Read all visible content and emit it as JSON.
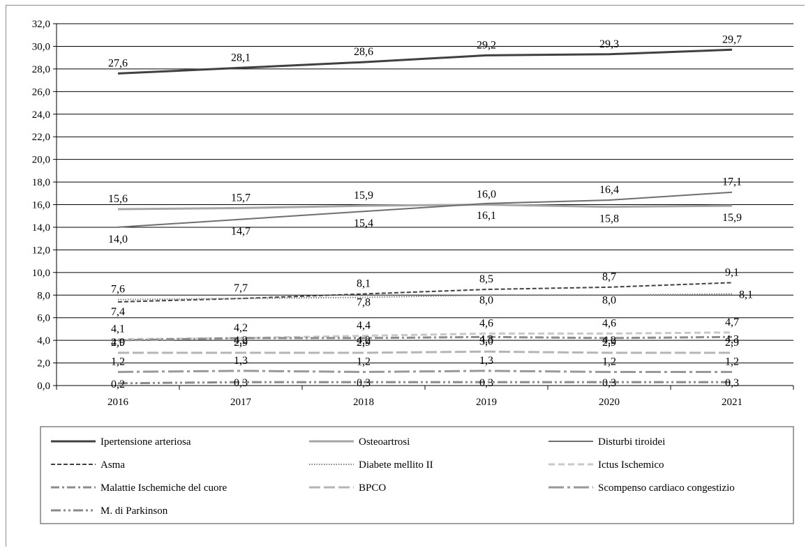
{
  "chart_data": {
    "type": "line",
    "title": "",
    "xlabel": "",
    "ylabel": "",
    "categories": [
      "2016",
      "2017",
      "2018",
      "2019",
      "2020",
      "2021"
    ],
    "ylim": [
      0,
      32
    ],
    "yticks": [
      "0,0",
      "2,0",
      "4,0",
      "6,0",
      "8,0",
      "10,0",
      "12,0",
      "14,0",
      "16,0",
      "18,0",
      "20,0",
      "22,0",
      "24,0",
      "26,0",
      "28,0",
      "30,0",
      "32,0"
    ],
    "grid": true,
    "legend_position": "bottom",
    "series": [
      {
        "name": "Ipertensione arteriosa",
        "values": [
          27.6,
          28.1,
          28.6,
          29.2,
          29.3,
          29.7
        ],
        "labels": [
          "27,6",
          "28,1",
          "28,6",
          "29,2",
          "29,3",
          "29,7"
        ],
        "color": "#404040",
        "dash": "solid",
        "width": 3,
        "label_pos": "above"
      },
      {
        "name": "Osteoartrosi",
        "values": [
          15.6,
          15.7,
          15.9,
          16.0,
          15.8,
          15.9
        ],
        "labels": [
          "15,6",
          "15,7",
          "15,9",
          "16,0",
          "15,8",
          "15,9"
        ],
        "color": "#a6a6a6",
        "dash": "solid",
        "width": 3,
        "label_pos": "osteo"
      },
      {
        "name": "Disturbi tiroidei",
        "values": [
          14.0,
          14.7,
          15.4,
          16.1,
          16.4,
          17.1
        ],
        "labels": [
          "14,0",
          "14,7",
          "15,4",
          "16,1",
          "16,4",
          "17,1"
        ],
        "color": "#6e6e6e",
        "dash": "solid",
        "width": 2,
        "label_pos": "tiro"
      },
      {
        "name": "Asma",
        "values": [
          7.4,
          7.7,
          8.1,
          8.5,
          8.7,
          9.1
        ],
        "labels": [
          "7,4",
          "7,7",
          "8,1",
          "8,5",
          "8,7",
          "9,1"
        ],
        "color": "#404040",
        "dash": "6,3",
        "width": 2,
        "label_pos": "asma"
      },
      {
        "name": "Diabete mellito II",
        "values": [
          7.6,
          7.7,
          7.8,
          8.0,
          8.0,
          8.1
        ],
        "labels": [
          "7,6",
          "",
          "7,8",
          "8,0",
          "8,0",
          "8,1"
        ],
        "color": "#7f7f7f",
        "dash": "1.5,2",
        "width": 2,
        "label_pos": "diab"
      },
      {
        "name": "Ictus Ischemico",
        "values": [
          4.1,
          4.2,
          4.4,
          4.6,
          4.6,
          4.7
        ],
        "labels": [
          "4,1",
          "4,2",
          "4,4",
          "4,6",
          "4,6",
          "4,7"
        ],
        "color": "#c8c8c8",
        "dash": "9,5",
        "width": 3,
        "label_pos": "above"
      },
      {
        "name": "Malattie Ischemiche del cuore",
        "values": [
          4.0,
          4.2,
          4.2,
          4.3,
          4.2,
          4.3
        ],
        "labels": [
          "4,0",
          "4,2",
          "4,2",
          "4,3",
          "4,2",
          "4,3"
        ],
        "color": "#8c8c8c",
        "dash": "12,4,3,4",
        "width": 3,
        "label_pos": "mal"
      },
      {
        "name": "BPCO",
        "values": [
          2.9,
          2.9,
          2.9,
          3.0,
          2.9,
          2.9
        ],
        "labels": [
          "2,9",
          "2,9",
          "2,9",
          "3,0",
          "2,9",
          "2,9"
        ],
        "color": "#b5b5b5",
        "dash": "16,5",
        "width": 3,
        "label_pos": "above"
      },
      {
        "name": "Scompenso cardiaco congestizio",
        "values": [
          1.2,
          1.3,
          1.2,
          1.3,
          1.2,
          1.2
        ],
        "labels": [
          "1,2",
          "1,3",
          "1,2",
          "1,3",
          "1,2",
          "1,2"
        ],
        "color": "#999999",
        "dash": "22,5,4,5",
        "width": 3,
        "label_pos": "above"
      },
      {
        "name": "M. di Parkinson",
        "values": [
          0.2,
          0.3,
          0.3,
          0.3,
          0.3,
          0.3
        ],
        "labels": [
          "0,2",
          "0,3",
          "0,3",
          "0,3",
          "0,3",
          "0,3"
        ],
        "color": "#8a8a8a",
        "dash": "14,4,3,4,3,4",
        "width": 3,
        "label_pos": "park"
      }
    ]
  }
}
